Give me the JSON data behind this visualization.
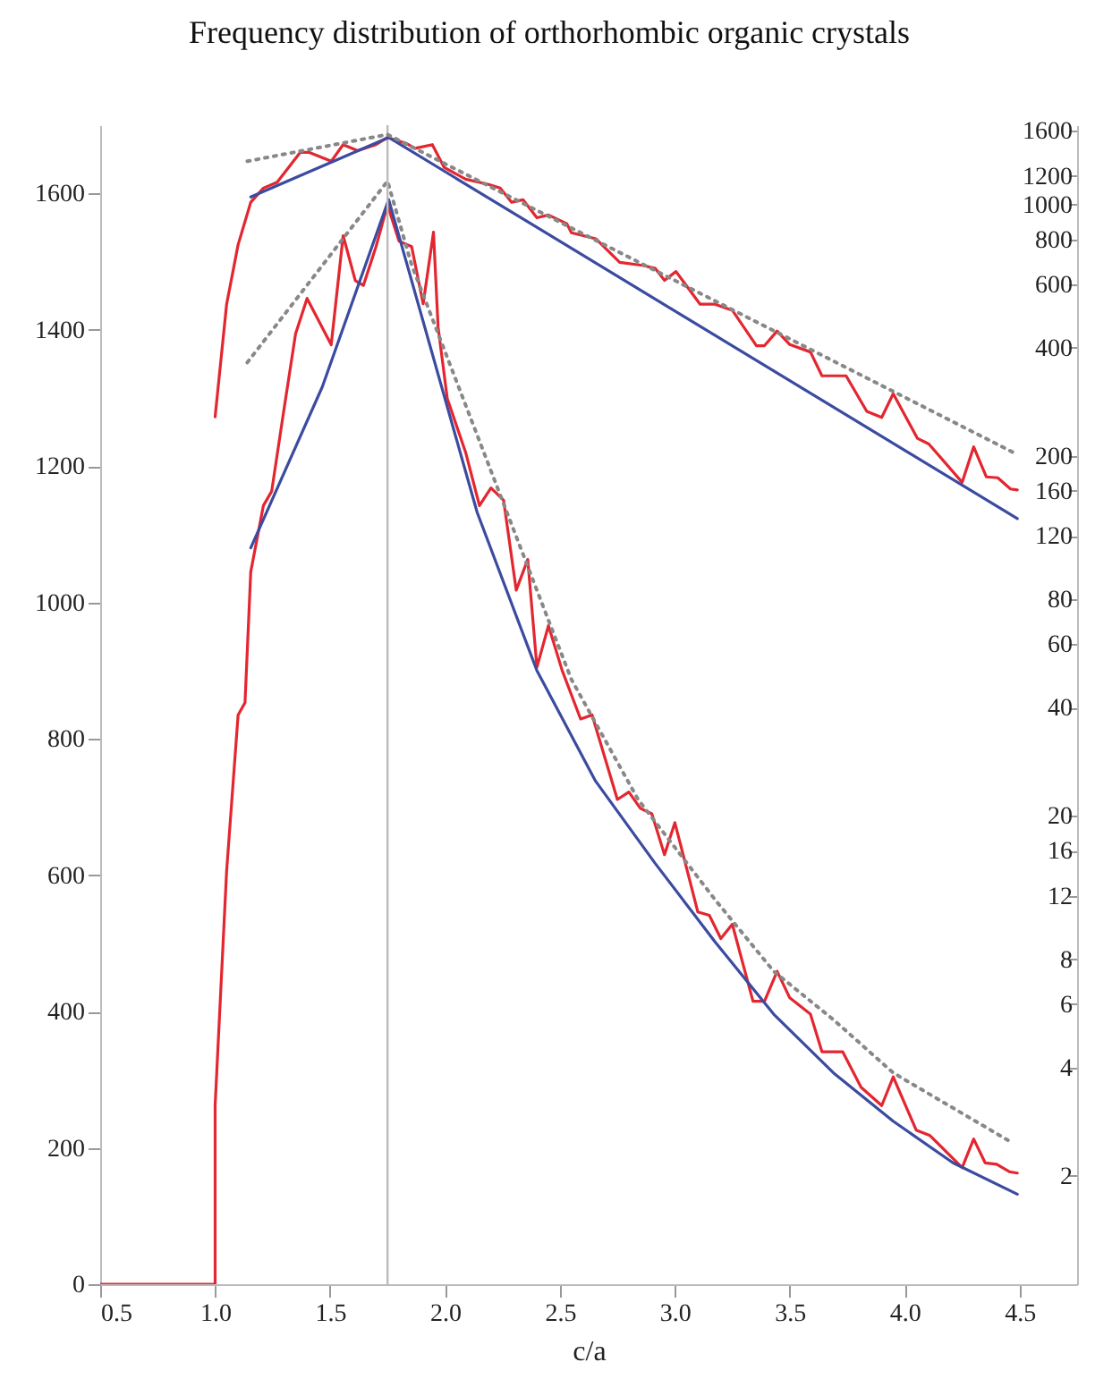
{
  "chart_data": {
    "type": "line",
    "title": "Frequency distribution of orthorhombic organic crystals",
    "xlabel": "c/a",
    "xlim": [
      0.5,
      4.75
    ],
    "xticks": [
      {
        "value": 0.5,
        "label": "0.5"
      },
      {
        "value": 1,
        "label": "1.0"
      },
      {
        "value": 1.5,
        "label": "1.5"
      },
      {
        "value": 2,
        "label": "2.0"
      },
      {
        "value": 2.5,
        "label": "2.5"
      },
      {
        "value": 3,
        "label": "3.0"
      },
      {
        "value": 3.5,
        "label": "3.5"
      },
      {
        "value": 4,
        "label": "4.0"
      },
      {
        "value": 4.5,
        "label": "4.5"
      }
    ],
    "ylim": [
      0,
      1700
    ],
    "yticks": [
      0,
      200,
      400,
      600,
      800,
      1000,
      1200,
      1400,
      1600
    ],
    "log": "y2",
    "y2lim": [
      1,
      1660
    ],
    "y2ticks": [
      2,
      4,
      6,
      8,
      12,
      16,
      20,
      40,
      60,
      80,
      120,
      160,
      200,
      400,
      600,
      800,
      1000,
      1200,
      1600
    ],
    "ref_lines": [
      {
        "axis": "x",
        "value": 1.75,
        "color": "#bbbbbb"
      }
    ],
    "series": [
      {
        "color": "#e32630",
        "line_style": "solid",
        "x": [
          0.5,
          1.0,
          1.0,
          1.05,
          1.1,
          1.13,
          1.155,
          1.21,
          1.246,
          1.295,
          1.35,
          1.4,
          1.505,
          1.557,
          1.61,
          1.645,
          1.7,
          1.75,
          1.8,
          1.855,
          1.905,
          1.95,
          1.97,
          2.01,
          2.09,
          2.15,
          2.2,
          2.255,
          2.31,
          2.36,
          2.4,
          2.45,
          2.51,
          2.59,
          2.64,
          2.75,
          2.8,
          2.85,
          2.9,
          2.955,
          3.0,
          3.04,
          3.1,
          3.15,
          3.2,
          3.25,
          3.34,
          3.39,
          3.445,
          3.5,
          3.59,
          3.64,
          3.73,
          3.81,
          3.9,
          3.95,
          4.05,
          4.11,
          4.25,
          4.3,
          4.35,
          4.4,
          4.455,
          4.49
        ],
        "values": [
          0,
          0,
          262,
          606,
          835,
          853,
          1045,
          1142,
          1163,
          1273,
          1394,
          1446,
          1378,
          1538,
          1472,
          1465,
          1522,
          1583,
          1530,
          1522,
          1438,
          1543,
          1404,
          1299,
          1220,
          1142,
          1168,
          1150,
          1018,
          1063,
          905,
          966,
          900,
          829,
          835,
          711,
          722,
          698,
          690,
          630,
          677,
          625,
          546,
          541,
          507,
          528,
          415,
          415,
          459,
          420,
          396,
          341,
          341,
          289,
          262,
          304,
          226,
          218,
          171,
          213,
          178,
          176,
          165,
          163
        ]
      },
      {
        "color": "#3b4ba0",
        "line_style": "solid",
        "x": [
          1.155,
          1.466,
          1.755,
          2.14,
          2.4,
          2.655,
          2.915,
          3.175,
          3.43,
          3.69,
          3.95,
          4.21,
          4.49
        ],
        "values": [
          1080,
          1316,
          1591,
          1132,
          900,
          738,
          617,
          502,
          396,
          310,
          239,
          178,
          132
        ]
      },
      {
        "color": "#888888",
        "line_style": "dotted",
        "x": [
          1.14,
          1.75,
          1.855,
          2.45,
          2.55,
          2.84,
          3.175,
          3.43,
          3.69,
          3.95,
          4.47
        ],
        "values": [
          1352,
          1618,
          1495,
          974,
          887,
          711,
          564,
          459,
          388,
          310,
          207
        ]
      },
      {
        "color": "#e32630",
        "line_style": "solid",
        "axis": "y2",
        "x": [
          1.0,
          1.05,
          1.1,
          1.155,
          1.21,
          1.27,
          1.37,
          1.41,
          1.505,
          1.557,
          1.62,
          1.7,
          1.75,
          1.83,
          1.87,
          1.945,
          1.996,
          2.09,
          2.19,
          2.24,
          2.29,
          2.34,
          2.4,
          2.45,
          2.53,
          2.55,
          2.656,
          2.76,
          2.86,
          2.915,
          2.955,
          3.005,
          3.11,
          3.175,
          3.25,
          3.355,
          3.39,
          3.445,
          3.5,
          3.59,
          3.64,
          3.745,
          3.835,
          3.9,
          3.95,
          4.055,
          4.105,
          4.25,
          4.3,
          4.355,
          4.405,
          4.46,
          4.49
        ],
        "values": [
          257,
          528,
          773,
          1014,
          1110,
          1153,
          1395,
          1395,
          1318,
          1466,
          1410,
          1466,
          1535,
          1479,
          1432,
          1466,
          1268,
          1175,
          1136,
          1110,
          1014,
          1030,
          918,
          935,
          884,
          834,
          803,
          690,
          677,
          664,
          615,
          651,
          528,
          528,
          508,
          405,
          405,
          445,
          408,
          389,
          334,
          334,
          266,
          256,
          298,
          224,
          216,
          169,
          212,
          175,
          174,
          162,
          161
        ]
      },
      {
        "color": "#3b4ba0",
        "line_style": "solid",
        "axis": "y2",
        "x": [
          1.155,
          1.755,
          4.49
        ],
        "values": [
          1049,
          1535,
          134
        ]
      },
      {
        "color": "#888888",
        "line_style": "dotted",
        "axis": "y2",
        "x": [
          1.14,
          1.75,
          4.47
        ],
        "values": [
          1318,
          1564,
          205
        ]
      }
    ]
  }
}
